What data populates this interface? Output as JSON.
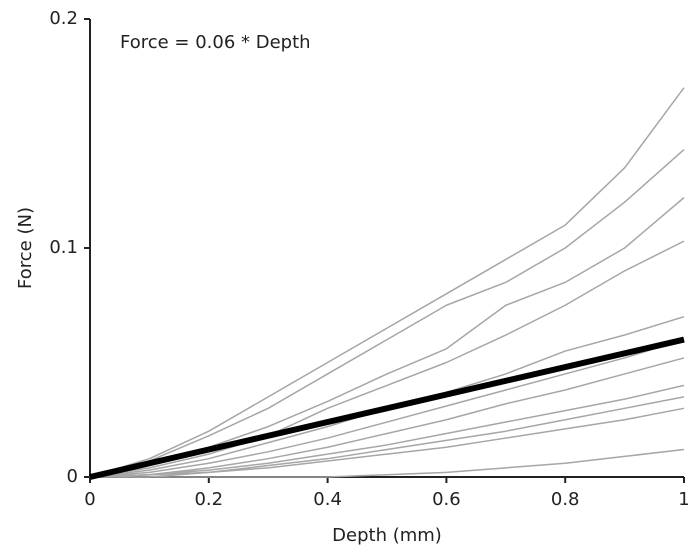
{
  "chart_data": {
    "type": "line",
    "annotation": "Force = 0.06 * Depth",
    "xlabel": "Depth (mm)",
    "ylabel": "Force (N)",
    "x": [
      0,
      0.1,
      0.2,
      0.3,
      0.4,
      0.5,
      0.6,
      0.7,
      0.8,
      0.9,
      1
    ],
    "series": [
      {
        "color": "#a6a6a6",
        "values": [
          0,
          0.008,
          0.02,
          0.035,
          0.05,
          0.065,
          0.08,
          0.095,
          0.11,
          0.135,
          0.17
        ]
      },
      {
        "color": "#a6a6a6",
        "values": [
          0,
          0.007,
          0.018,
          0.03,
          0.045,
          0.06,
          0.075,
          0.085,
          0.1,
          0.12,
          0.143
        ]
      },
      {
        "color": "#a6a6a6",
        "values": [
          0,
          0.005,
          0.013,
          0.022,
          0.033,
          0.045,
          0.056,
          0.075,
          0.085,
          0.1,
          0.122
        ]
      },
      {
        "color": "#a6a6a6",
        "values": [
          0,
          0.004,
          0.01,
          0.018,
          0.03,
          0.04,
          0.05,
          0.062,
          0.075,
          0.09,
          0.103
        ]
      },
      {
        "color": "#a6a6a6",
        "values": [
          0,
          0.003,
          0.008,
          0.015,
          0.022,
          0.03,
          0.037,
          0.045,
          0.055,
          0.062,
          0.07
        ]
      },
      {
        "color": "#a6a6a6",
        "values": [
          0,
          0.002,
          0.006,
          0.011,
          0.017,
          0.024,
          0.031,
          0.038,
          0.045,
          0.052,
          0.06
        ]
      },
      {
        "color": "#a6a6a6",
        "values": [
          0,
          0.001,
          0.004,
          0.008,
          0.013,
          0.019,
          0.025,
          0.032,
          0.038,
          0.045,
          0.052
        ]
      },
      {
        "color": "#a6a6a6",
        "values": [
          0,
          0.001,
          0.003,
          0.006,
          0.01,
          0.014,
          0.019,
          0.024,
          0.029,
          0.034,
          0.04
        ]
      },
      {
        "color": "#a6a6a6",
        "values": [
          0,
          0.001,
          0.002,
          0.005,
          0.008,
          0.012,
          0.016,
          0.02,
          0.025,
          0.03,
          0.035
        ]
      },
      {
        "color": "#a6a6a6",
        "values": [
          0,
          0,
          0.002,
          0.004,
          0.007,
          0.01,
          0.013,
          0.017,
          0.021,
          0.025,
          0.03
        ]
      },
      {
        "color": "#a6a6a6",
        "values": [
          0,
          0,
          0,
          0,
          0,
          0.001,
          0.002,
          0.004,
          0.006,
          0.009,
          0.012
        ]
      }
    ],
    "fit": {
      "x": [
        0,
        1
      ],
      "values": [
        0,
        0.06
      ],
      "color": "#000000"
    },
    "xlim": [
      0,
      1
    ],
    "xticks": [
      0,
      0.2,
      0.4,
      0.6,
      0.8,
      1
    ],
    "ylim": [
      0,
      0.2
    ],
    "yticks": [
      0,
      0.1,
      0.2
    ]
  }
}
